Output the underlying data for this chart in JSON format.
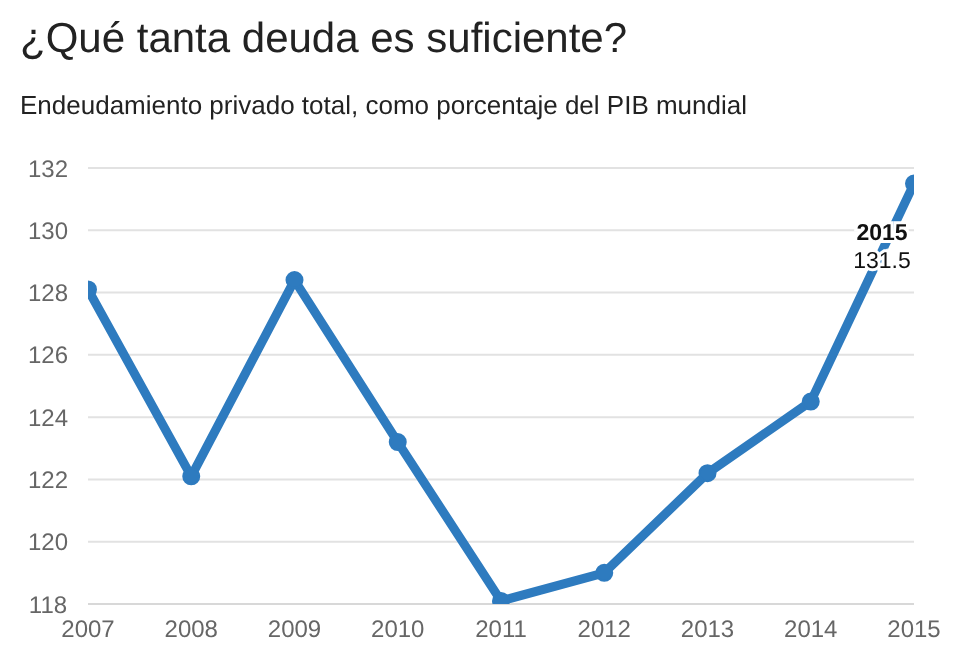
{
  "chart_data": {
    "type": "line",
    "title": "¿Qué tanta deuda es suficiente?",
    "subtitle": "Endeudamiento privado total, como porcentaje del PIB mundial",
    "categories": [
      "2007",
      "2008",
      "2009",
      "2010",
      "2011",
      "2012",
      "2013",
      "2014",
      "2015"
    ],
    "series": [
      {
        "color": "#2e7bbf",
        "values": [
          128.1,
          122.1,
          128.4,
          123.2,
          118.1,
          119.0,
          122.2,
          124.5,
          131.5
        ]
      }
    ],
    "ylim": [
      118,
      132
    ],
    "yticks": [
      118,
      120,
      122,
      124,
      126,
      128,
      130,
      132
    ],
    "grid": "y",
    "marker": "circle",
    "line_style": "solid",
    "annotations": [
      {
        "text": "2015",
        "x": "2015",
        "y": 131.5
      },
      {
        "text": "131.5",
        "x": "2015",
        "y": 131.5
      }
    ]
  }
}
